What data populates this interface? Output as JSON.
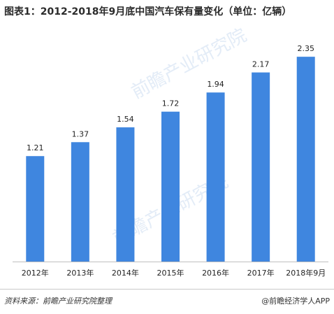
{
  "title": "图表1：2012-2018年9月底中国汽车保有量变化（单位：亿辆）",
  "source": "资料来源：前瞻产业研究院整理",
  "brand": "@前瞻经济学人APP",
  "watermark": {
    "text": "前瞻产业研究院",
    "color": "#dbe8f6"
  },
  "colors": {
    "bar": "#3f86df",
    "text": "#222222",
    "axis": "#bfbfbf"
  },
  "chart_data": {
    "type": "bar",
    "categories": [
      "2012年",
      "2013年",
      "2014年",
      "2015年",
      "2016年",
      "2017年",
      "2018年9月"
    ],
    "values": [
      1.21,
      1.37,
      1.54,
      1.72,
      1.94,
      2.17,
      2.35
    ],
    "title": "图表1：2012-2018年9月底中国汽车保有量变化（单位：亿辆）",
    "xlabel": "",
    "ylabel": "",
    "ylim": [
      0,
      2.6
    ],
    "grid": false,
    "legend": "none"
  }
}
